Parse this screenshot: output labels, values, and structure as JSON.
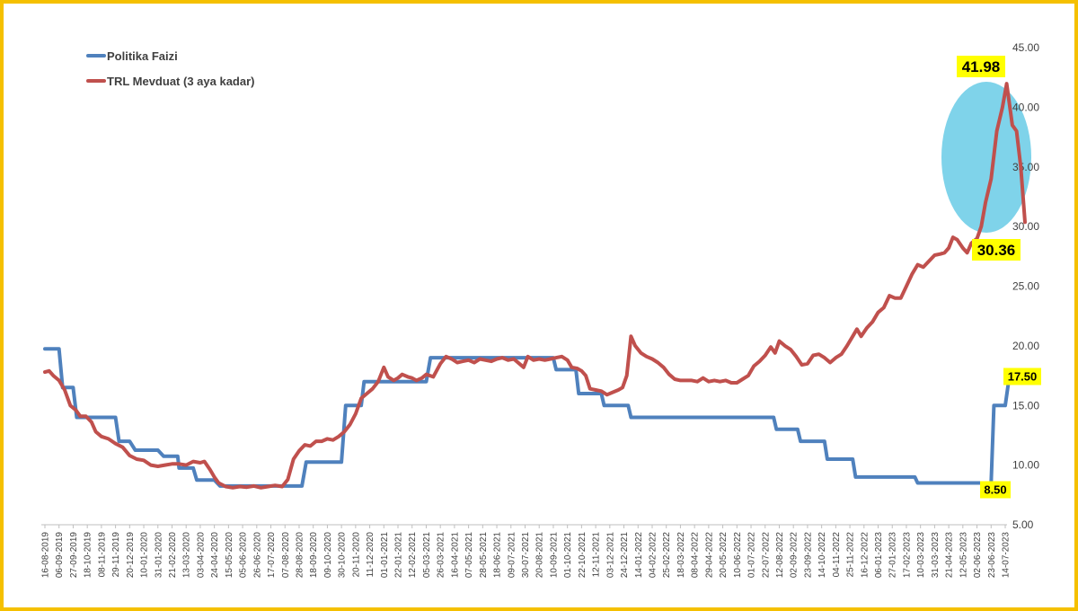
{
  "chart_data": {
    "type": "line",
    "title": "",
    "xlabel": "",
    "ylabel": "",
    "ylim": [
      5,
      45
    ],
    "y_axis_side": "right",
    "y_ticks": [
      "5.00",
      "10.00",
      "15.00",
      "20.00",
      "25.00",
      "30.00",
      "35.00",
      "40.00",
      "45.00"
    ],
    "grid": false,
    "legend_position": "top-left",
    "x_tick_labels": [
      "16-08-2019",
      "06-09-2019",
      "27-09-2019",
      "18-10-2019",
      "08-11-2019",
      "29-11-2019",
      "20-12-2019",
      "10-01-2020",
      "31-01-2020",
      "21-02-2020",
      "13-03-2020",
      "03-04-2020",
      "24-04-2020",
      "15-05-2020",
      "05-06-2020",
      "26-06-2020",
      "17-07-2020",
      "07-08-2020",
      "28-08-2020",
      "18-09-2020",
      "09-10-2020",
      "30-10-2020",
      "20-11-2020",
      "11-12-2020",
      "01-01-2021",
      "22-01-2021",
      "12-02-2021",
      "05-03-2021",
      "26-03-2021",
      "16-04-2021",
      "07-05-2021",
      "28-05-2021",
      "18-06-2021",
      "09-07-2021",
      "30-07-2021",
      "20-08-2021",
      "10-09-2021",
      "01-10-2021",
      "22-10-2021",
      "12-11-2021",
      "03-12-2021",
      "24-12-2021",
      "14-01-2022",
      "04-02-2022",
      "25-02-2022",
      "18-03-2022",
      "08-04-2022",
      "29-04-2022",
      "20-05-2022",
      "10-06-2022",
      "01-07-2022",
      "22-07-2022",
      "12-08-2022",
      "02-09-2022",
      "23-09-2022",
      "14-10-2022",
      "04-11-2022",
      "25-11-2022",
      "16-12-2022",
      "06-01-2023",
      "27-01-2023",
      "17-02-2023",
      "10-03-2023",
      "31-03-2023",
      "21-04-2023",
      "12-05-2023",
      "02-06-2023",
      "23-06-2023",
      "14-07-2023"
    ],
    "series": [
      {
        "name": "Politika Faizi",
        "color": "#4f81bd",
        "points": [
          [
            0,
            19.75
          ],
          [
            1,
            19.75
          ],
          [
            1.25,
            16.5
          ],
          [
            2,
            16.5
          ],
          [
            2.25,
            14
          ],
          [
            5,
            14
          ],
          [
            5.25,
            12
          ],
          [
            6,
            12
          ],
          [
            6.4,
            11.25
          ],
          [
            8,
            11.25
          ],
          [
            8.4,
            10.75
          ],
          [
            9.4,
            10.75
          ],
          [
            9.5,
            9.75
          ],
          [
            10.5,
            9.75
          ],
          [
            10.75,
            8.75
          ],
          [
            12,
            8.75
          ],
          [
            12.4,
            8.25
          ],
          [
            18.2,
            8.25
          ],
          [
            18.5,
            10.25
          ],
          [
            21,
            10.25
          ],
          [
            21.3,
            15
          ],
          [
            22.4,
            15
          ],
          [
            22.6,
            17
          ],
          [
            27,
            17
          ],
          [
            27.3,
            19
          ],
          [
            36,
            19
          ],
          [
            36.2,
            18
          ],
          [
            37.6,
            18
          ],
          [
            37.8,
            16
          ],
          [
            39.4,
            16
          ],
          [
            39.6,
            15
          ],
          [
            41.3,
            15
          ],
          [
            41.5,
            14
          ],
          [
            51.6,
            14
          ],
          [
            51.8,
            13
          ],
          [
            53.3,
            13
          ],
          [
            53.5,
            12
          ],
          [
            55.2,
            12
          ],
          [
            55.4,
            10.5
          ],
          [
            57.2,
            10.5
          ],
          [
            57.4,
            9
          ],
          [
            61.6,
            9
          ],
          [
            61.8,
            8.5
          ],
          [
            67,
            8.5
          ],
          [
            67.2,
            15
          ],
          [
            68,
            15
          ],
          [
            68.3,
            17.5
          ]
        ]
      },
      {
        "name": "TRL Mevduat (3 aya kadar)",
        "color": "#c0504d",
        "points": [
          [
            0,
            17.8
          ],
          [
            0.3,
            17.9
          ],
          [
            0.6,
            17.5
          ],
          [
            1,
            17.1
          ],
          [
            1.4,
            16.3
          ],
          [
            1.8,
            15
          ],
          [
            2.2,
            14.6
          ],
          [
            2.5,
            14.1
          ],
          [
            2.9,
            14.1
          ],
          [
            3.3,
            13.6
          ],
          [
            3.6,
            12.8
          ],
          [
            4,
            12.4
          ],
          [
            4.5,
            12.2
          ],
          [
            5,
            11.8
          ],
          [
            5.5,
            11.5
          ],
          [
            6,
            10.8
          ],
          [
            6.5,
            10.5
          ],
          [
            7,
            10.4
          ],
          [
            7.5,
            10
          ],
          [
            8,
            9.9
          ],
          [
            8.5,
            10
          ],
          [
            9,
            10.1
          ],
          [
            9.5,
            10.1
          ],
          [
            10,
            10
          ],
          [
            10.5,
            10.3
          ],
          [
            11,
            10.2
          ],
          [
            11.3,
            10.3
          ],
          [
            11.7,
            9.6
          ],
          [
            12,
            9
          ],
          [
            12.3,
            8.5
          ],
          [
            12.8,
            8.2
          ],
          [
            13.3,
            8.1
          ],
          [
            13.8,
            8.2
          ],
          [
            14.3,
            8.15
          ],
          [
            14.8,
            8.25
          ],
          [
            15.3,
            8.1
          ],
          [
            15.8,
            8.2
          ],
          [
            16.3,
            8.3
          ],
          [
            16.8,
            8.2
          ],
          [
            17.2,
            8.8
          ],
          [
            17.6,
            10.5
          ],
          [
            18,
            11.2
          ],
          [
            18.4,
            11.7
          ],
          [
            18.8,
            11.6
          ],
          [
            19.2,
            12
          ],
          [
            19.6,
            12
          ],
          [
            20,
            12.2
          ],
          [
            20.4,
            12.1
          ],
          [
            20.8,
            12.4
          ],
          [
            21.2,
            12.8
          ],
          [
            21.6,
            13.4
          ],
          [
            22,
            14.3
          ],
          [
            22.4,
            15.6
          ],
          [
            22.8,
            16
          ],
          [
            23.2,
            16.4
          ],
          [
            23.6,
            17
          ],
          [
            24,
            18.2
          ],
          [
            24.3,
            17.4
          ],
          [
            24.7,
            17.1
          ],
          [
            25,
            17.3
          ],
          [
            25.3,
            17.6
          ],
          [
            25.7,
            17.4
          ],
          [
            26,
            17.3
          ],
          [
            26.3,
            17.1
          ],
          [
            26.7,
            17.3
          ],
          [
            27,
            17.6
          ],
          [
            27.5,
            17.4
          ],
          [
            28,
            18.5
          ],
          [
            28.4,
            19.1
          ],
          [
            28.8,
            18.9
          ],
          [
            29.2,
            18.6
          ],
          [
            29.6,
            18.7
          ],
          [
            30,
            18.8
          ],
          [
            30.4,
            18.6
          ],
          [
            30.8,
            18.9
          ],
          [
            31.2,
            18.8
          ],
          [
            31.6,
            18.7
          ],
          [
            32,
            18.9
          ],
          [
            32.4,
            19
          ],
          [
            32.8,
            18.8
          ],
          [
            33.2,
            18.9
          ],
          [
            33.6,
            18.5
          ],
          [
            33.9,
            18.2
          ],
          [
            34.2,
            19.1
          ],
          [
            34.6,
            18.8
          ],
          [
            35,
            18.9
          ],
          [
            35.4,
            18.8
          ],
          [
            35.8,
            18.9
          ],
          [
            36.2,
            19
          ],
          [
            36.6,
            19.1
          ],
          [
            37,
            18.8
          ],
          [
            37.3,
            18.2
          ],
          [
            37.7,
            18.1
          ],
          [
            38,
            17.9
          ],
          [
            38.3,
            17.5
          ],
          [
            38.6,
            16.4
          ],
          [
            39,
            16.3
          ],
          [
            39.4,
            16.2
          ],
          [
            39.8,
            15.9
          ],
          [
            40.2,
            16.1
          ],
          [
            40.6,
            16.3
          ],
          [
            40.9,
            16.5
          ],
          [
            41.2,
            17.5
          ],
          [
            41.5,
            20.8
          ],
          [
            41.8,
            20
          ],
          [
            42.2,
            19.4
          ],
          [
            42.6,
            19.1
          ],
          [
            43,
            18.9
          ],
          [
            43.4,
            18.6
          ],
          [
            43.8,
            18.2
          ],
          [
            44.2,
            17.6
          ],
          [
            44.6,
            17.2
          ],
          [
            45,
            17.1
          ],
          [
            45.4,
            17.1
          ],
          [
            45.8,
            17.1
          ],
          [
            46.2,
            17
          ],
          [
            46.6,
            17.3
          ],
          [
            47,
            17
          ],
          [
            47.4,
            17.1
          ],
          [
            47.8,
            17
          ],
          [
            48.2,
            17.1
          ],
          [
            48.6,
            16.9
          ],
          [
            49,
            16.9
          ],
          [
            49.4,
            17.2
          ],
          [
            49.8,
            17.5
          ],
          [
            50.2,
            18.3
          ],
          [
            50.6,
            18.7
          ],
          [
            51,
            19.2
          ],
          [
            51.4,
            19.9
          ],
          [
            51.7,
            19.4
          ],
          [
            52,
            20.4
          ],
          [
            52.4,
            20
          ],
          [
            52.8,
            19.7
          ],
          [
            53.2,
            19.1
          ],
          [
            53.6,
            18.4
          ],
          [
            54,
            18.5
          ],
          [
            54.4,
            19.2
          ],
          [
            54.8,
            19.3
          ],
          [
            55.2,
            19
          ],
          [
            55.6,
            18.6
          ],
          [
            56,
            19
          ],
          [
            56.4,
            19.3
          ],
          [
            56.8,
            20
          ],
          [
            57.2,
            20.8
          ],
          [
            57.5,
            21.4
          ],
          [
            57.8,
            20.8
          ],
          [
            58.2,
            21.5
          ],
          [
            58.6,
            22
          ],
          [
            59,
            22.8
          ],
          [
            59.4,
            23.2
          ],
          [
            59.8,
            24.2
          ],
          [
            60.2,
            24
          ],
          [
            60.6,
            24
          ],
          [
            61,
            25
          ],
          [
            61.4,
            26
          ],
          [
            61.8,
            26.8
          ],
          [
            62.2,
            26.6
          ],
          [
            62.6,
            27.1
          ],
          [
            63,
            27.6
          ],
          [
            63.4,
            27.7
          ],
          [
            63.7,
            27.8
          ],
          [
            64,
            28.2
          ],
          [
            64.3,
            29.1
          ],
          [
            64.6,
            28.9
          ],
          [
            65,
            28.2
          ],
          [
            65.3,
            27.8
          ],
          [
            65.6,
            28.6
          ],
          [
            66,
            29
          ],
          [
            66.3,
            30
          ],
          [
            66.6,
            32
          ],
          [
            67,
            34
          ],
          [
            67.4,
            38
          ],
          [
            67.8,
            40
          ],
          [
            68.1,
            41.98
          ],
          [
            68.5,
            38.5
          ],
          [
            68.8,
            38
          ],
          [
            69.1,
            35
          ],
          [
            69.4,
            30.36
          ]
        ]
      }
    ],
    "annotations": [
      {
        "text": "41.98",
        "x": 68.1,
        "y": 41.98,
        "fill": "#ffff00"
      },
      {
        "text": "30.36",
        "x": 69.4,
        "y": 30.36,
        "fill": "#ffff00"
      },
      {
        "text": "17.50",
        "x": 68.3,
        "y": 17.5,
        "fill": "#ffff00"
      },
      {
        "text": "8.50",
        "x": 67,
        "y": 8.5,
        "fill": "#ffff00"
      }
    ],
    "highlight_ellipse_color": "#7fd3ea"
  }
}
